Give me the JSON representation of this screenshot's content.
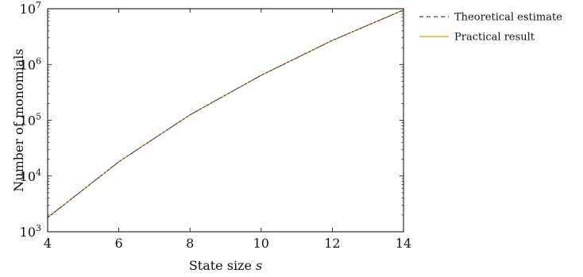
{
  "chart_data": {
    "type": "line",
    "title": "",
    "xlabel": "State size",
    "xlabel_var": "s",
    "ylabel": "Number of monomials",
    "xlim": [
      4,
      14
    ],
    "ylim": [
      1000,
      10000000
    ],
    "yscale": "log",
    "grid": false,
    "legend_position": "outside-right",
    "x_ticks": [
      4,
      6,
      8,
      10,
      12,
      14
    ],
    "y_ticks": [
      {
        "value": 1000,
        "base": "10",
        "exp": "3"
      },
      {
        "value": 10000,
        "base": "10",
        "exp": "4"
      },
      {
        "value": 100000,
        "base": "10",
        "exp": "5"
      },
      {
        "value": 1000000,
        "base": "10",
        "exp": "6"
      },
      {
        "value": 10000000,
        "base": "10",
        "exp": "7"
      }
    ],
    "x": [
      4,
      6,
      8,
      10,
      12,
      14
    ],
    "series": [
      {
        "name": "Theoretical estimate",
        "color": "#404040",
        "style": "dashed",
        "values": [
          1800,
          18000,
          125000,
          640000,
          2700000,
          9500000
        ]
      },
      {
        "name": "Practical result",
        "color": "#f39c12",
        "style": "solid",
        "values": [
          1800,
          18000,
          125000,
          640000,
          2700000,
          9500000
        ]
      }
    ]
  }
}
